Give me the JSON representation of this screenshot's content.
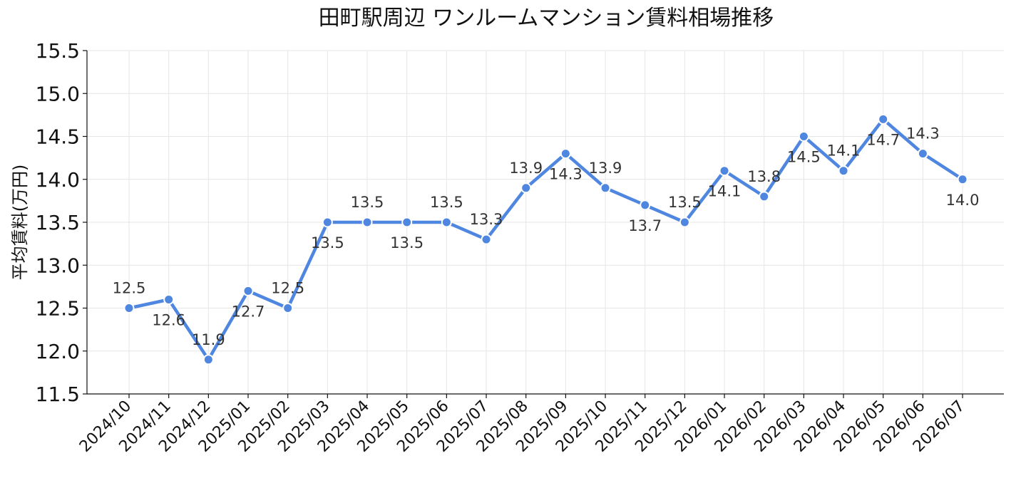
{
  "chart_data": {
    "type": "line",
    "title": "田町駅周辺 ワンルームマンション賃料相場推移",
    "xlabel": "",
    "ylabel": "平均賃料(万円)",
    "ylim": [
      11.5,
      15.5
    ],
    "yticks": [
      "11.5",
      "12.0",
      "12.5",
      "13.0",
      "13.5",
      "14.0",
      "14.5",
      "15.0",
      "15.5"
    ],
    "grid": true,
    "categories": [
      "2024/10",
      "2024/11",
      "2024/12",
      "2025/01",
      "2025/02",
      "2025/03",
      "2025/04",
      "2025/05",
      "2025/06",
      "2025/07",
      "2025/08",
      "2025/09",
      "2025/10",
      "2025/11",
      "2025/12",
      "2026/01",
      "2026/02",
      "2026/03",
      "2026/04",
      "2026/05",
      "2026/06",
      "2026/07"
    ],
    "series": [
      {
        "values": [
          12.5,
          12.6,
          11.9,
          12.7,
          12.5,
          13.5,
          13.5,
          13.5,
          13.5,
          13.3,
          13.9,
          14.3,
          13.9,
          13.7,
          13.5,
          14.1,
          13.8,
          14.5,
          14.1,
          14.7,
          14.3,
          14.0
        ],
        "labels": [
          "12.5",
          "12.6",
          "11.9",
          "12.7",
          "12.5",
          "13.5",
          "13.5",
          "13.5",
          "13.5",
          "13.3",
          "13.9",
          "14.3",
          "13.9",
          "13.7",
          "13.5",
          "14.1",
          "13.8",
          "14.5",
          "14.1",
          "14.7",
          "14.3",
          "14.0"
        ],
        "color": "#4f86e0"
      }
    ]
  }
}
